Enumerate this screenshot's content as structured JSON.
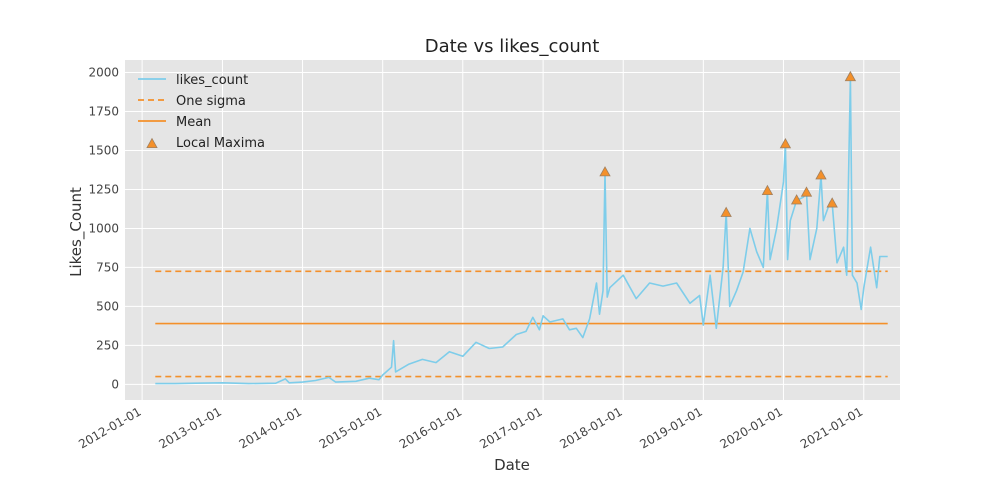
{
  "colors": {
    "background": "#e5e5e5",
    "grid": "#ffffff",
    "likes_line": "#7ecdea",
    "sigma": "#f4902a",
    "mean": "#f4902a",
    "maxima_fill": "#f4902a",
    "maxima_edge": "#a08060"
  },
  "chart_data": {
    "type": "line",
    "title": "Date vs likes_count",
    "xlabel": "Date",
    "ylabel": "Likes_Count",
    "xlim": [
      "2011-10-15",
      "2021-06-15"
    ],
    "ylim": [
      -100,
      2080
    ],
    "grid": true,
    "legend_position": "top-left",
    "xticks": [
      "2012-01-01",
      "2013-01-01",
      "2014-01-01",
      "2015-01-01",
      "2016-01-01",
      "2017-01-01",
      "2018-01-01",
      "2019-01-01",
      "2020-01-01",
      "2021-01-01"
    ],
    "yticks": [
      0,
      250,
      500,
      750,
      1000,
      1250,
      1500,
      1750,
      2000
    ],
    "legend": [
      {
        "label": "likes_count",
        "kind": "line"
      },
      {
        "label": "One sigma",
        "kind": "dashed"
      },
      {
        "label": "Mean",
        "kind": "line-orange"
      },
      {
        "label": "Local Maxima",
        "kind": "marker"
      }
    ],
    "mean": 390,
    "sigma_upper": 725,
    "sigma_lower": 50,
    "reference_line_range": [
      "2012-03-01",
      "2021-04-20"
    ],
    "series": [
      {
        "name": "likes_count",
        "points": [
          [
            "2012-03-01",
            5
          ],
          [
            "2012-06-01",
            5
          ],
          [
            "2012-09-01",
            8
          ],
          [
            "2013-01-01",
            10
          ],
          [
            "2013-05-01",
            5
          ],
          [
            "2013-09-01",
            8
          ],
          [
            "2013-10-15",
            35
          ],
          [
            "2013-11-01",
            10
          ],
          [
            "2014-01-01",
            15
          ],
          [
            "2014-03-01",
            25
          ],
          [
            "2014-05-01",
            45
          ],
          [
            "2014-06-01",
            15
          ],
          [
            "2014-09-01",
            20
          ],
          [
            "2014-11-01",
            40
          ],
          [
            "2014-12-15",
            30
          ],
          [
            "2015-01-01",
            60
          ],
          [
            "2015-02-10",
            110
          ],
          [
            "2015-02-20",
            280
          ],
          [
            "2015-03-01",
            80
          ],
          [
            "2015-05-01",
            130
          ],
          [
            "2015-07-01",
            160
          ],
          [
            "2015-09-01",
            140
          ],
          [
            "2015-11-01",
            210
          ],
          [
            "2016-01-01",
            180
          ],
          [
            "2016-03-01",
            270
          ],
          [
            "2016-05-01",
            230
          ],
          [
            "2016-07-01",
            240
          ],
          [
            "2016-09-01",
            320
          ],
          [
            "2016-10-15",
            340
          ],
          [
            "2016-11-15",
            430
          ],
          [
            "2016-12-15",
            350
          ],
          [
            "2017-01-01",
            440
          ],
          [
            "2017-02-01",
            400
          ],
          [
            "2017-04-01",
            420
          ],
          [
            "2017-05-01",
            350
          ],
          [
            "2017-06-01",
            360
          ],
          [
            "2017-07-01",
            300
          ],
          [
            "2017-08-01",
            420
          ],
          [
            "2017-09-01",
            650
          ],
          [
            "2017-09-15",
            450
          ],
          [
            "2017-10-01",
            600
          ],
          [
            "2017-10-10",
            1360
          ],
          [
            "2017-10-20",
            560
          ],
          [
            "2017-11-01",
            620
          ],
          [
            "2018-01-01",
            700
          ],
          [
            "2018-03-01",
            550
          ],
          [
            "2018-05-01",
            650
          ],
          [
            "2018-07-01",
            630
          ],
          [
            "2018-09-01",
            650
          ],
          [
            "2018-11-01",
            520
          ],
          [
            "2018-12-15",
            570
          ],
          [
            "2019-01-01",
            380
          ],
          [
            "2019-02-01",
            700
          ],
          [
            "2019-03-01",
            360
          ],
          [
            "2019-04-01",
            750
          ],
          [
            "2019-04-15",
            1100
          ],
          [
            "2019-05-01",
            500
          ],
          [
            "2019-06-01",
            600
          ],
          [
            "2019-07-01",
            720
          ],
          [
            "2019-08-01",
            1000
          ],
          [
            "2019-09-01",
            850
          ],
          [
            "2019-10-01",
            750
          ],
          [
            "2019-10-20",
            1240
          ],
          [
            "2019-11-01",
            800
          ],
          [
            "2019-12-01",
            1000
          ],
          [
            "2020-01-01",
            1300
          ],
          [
            "2020-01-10",
            1540
          ],
          [
            "2020-01-20",
            800
          ],
          [
            "2020-02-01",
            1050
          ],
          [
            "2020-03-01",
            1180
          ],
          [
            "2020-04-01",
            1200
          ],
          [
            "2020-04-15",
            1230
          ],
          [
            "2020-05-01",
            800
          ],
          [
            "2020-06-01",
            1000
          ],
          [
            "2020-06-20",
            1340
          ],
          [
            "2020-07-01",
            1050
          ],
          [
            "2020-08-01",
            1170
          ],
          [
            "2020-08-10",
            1160
          ],
          [
            "2020-09-01",
            780
          ],
          [
            "2020-10-01",
            880
          ],
          [
            "2020-10-15",
            700
          ],
          [
            "2020-11-01",
            1970
          ],
          [
            "2020-11-10",
            700
          ],
          [
            "2020-12-01",
            650
          ],
          [
            "2020-12-20",
            480
          ],
          [
            "2021-01-01",
            620
          ],
          [
            "2021-02-01",
            880
          ],
          [
            "2021-03-01",
            620
          ],
          [
            "2021-03-15",
            820
          ],
          [
            "2021-04-20",
            820
          ]
        ]
      }
    ],
    "local_maxima": [
      [
        "2017-10-10",
        1360
      ],
      [
        "2019-04-15",
        1100
      ],
      [
        "2019-10-20",
        1240
      ],
      [
        "2020-01-10",
        1540
      ],
      [
        "2020-03-01",
        1180
      ],
      [
        "2020-04-15",
        1230
      ],
      [
        "2020-06-20",
        1340
      ],
      [
        "2020-08-10",
        1160
      ],
      [
        "2020-11-01",
        1970
      ]
    ]
  }
}
